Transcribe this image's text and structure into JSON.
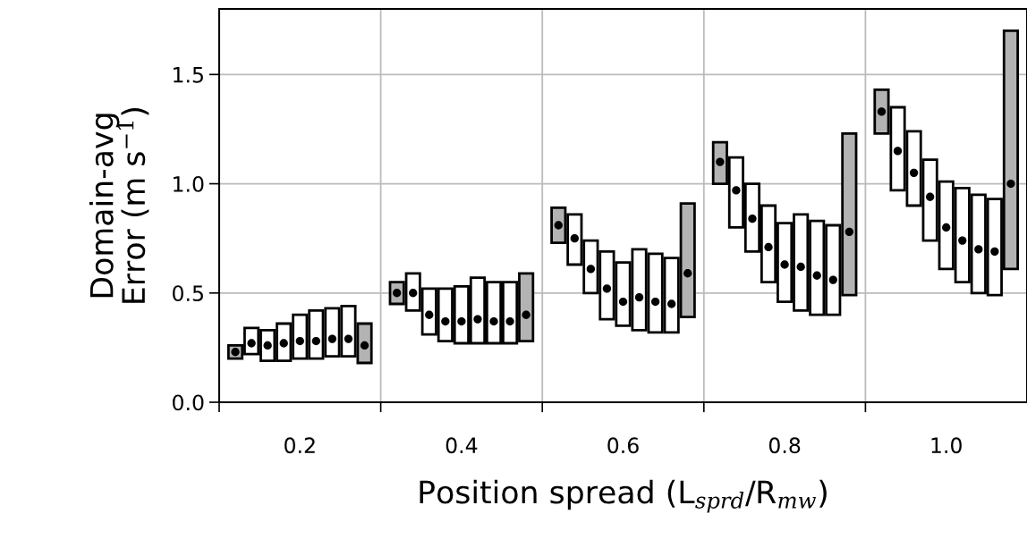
{
  "chart_data": {
    "type": "bar",
    "xlabel": "Position spread (L$_{sprd}$/R$_{mw}$)",
    "ylabel": "Domain-avg\nError (m s$^{−1}$)",
    "categories": [
      "0.2",
      "0.4",
      "0.6",
      "0.8",
      "1.0"
    ],
    "ylim": [
      0,
      1.8
    ],
    "yticks": [
      {
        "value": 0,
        "label": "0.0"
      },
      {
        "value": 0.5,
        "label": "0.5"
      },
      {
        "value": 1,
        "label": "1.0"
      },
      {
        "value": 1.5,
        "label": "1.5"
      }
    ],
    "grid": true,
    "series": [
      {
        "color": "#b3b3b3",
        "base": [
          0.2,
          0.45,
          0.73,
          1.0,
          1.23
        ],
        "values": [
          0.06,
          0.1,
          0.16,
          0.19,
          0.2
        ]
      },
      {
        "color": "#ffffff",
        "base": [
          0.22,
          0.42,
          0.63,
          0.8,
          0.97
        ],
        "values": [
          0.12,
          0.17,
          0.23,
          0.32,
          0.38
        ]
      },
      {
        "color": "#ffffff",
        "base": [
          0.19,
          0.31,
          0.5,
          0.69,
          0.9
        ],
        "values": [
          0.14,
          0.21,
          0.24,
          0.31,
          0.34
        ]
      },
      {
        "color": "#ffffff",
        "base": [
          0.19,
          0.28,
          0.38,
          0.55,
          0.74
        ],
        "values": [
          0.17,
          0.24,
          0.31,
          0.35,
          0.37
        ]
      },
      {
        "color": "#ffffff",
        "base": [
          0.2,
          0.27,
          0.35,
          0.46,
          0.61
        ],
        "values": [
          0.2,
          0.26,
          0.29,
          0.36,
          0.4
        ]
      },
      {
        "color": "#ffffff",
        "base": [
          0.2,
          0.27,
          0.33,
          0.42,
          0.55
        ],
        "values": [
          0.22,
          0.3,
          0.37,
          0.44,
          0.43
        ]
      },
      {
        "color": "#ffffff",
        "base": [
          0.21,
          0.27,
          0.32,
          0.4,
          0.5
        ],
        "values": [
          0.22,
          0.28,
          0.36,
          0.43,
          0.45
        ]
      },
      {
        "color": "#ffffff",
        "base": [
          0.21,
          0.27,
          0.32,
          0.4,
          0.49
        ],
        "values": [
          0.23,
          0.28,
          0.34,
          0.41,
          0.44
        ]
      },
      {
        "color": "#b3b3b3",
        "base": [
          0.18,
          0.28,
          0.39,
          0.49,
          0.61
        ],
        "values": [
          0.18,
          0.31,
          0.52,
          0.74,
          1.09
        ]
      },
      {
        "type": "scatter",
        "color": "#000000",
        "x": [
          "0.2",
          "0.4",
          "0.6",
          "0.8",
          "1.0"
        ],
        "values": [
          0.23,
          0.5,
          0.81,
          1.1,
          1.33
        ]
      },
      {
        "type": "scatter",
        "color": "#000000",
        "x": [
          "0.2",
          "0.4",
          "0.6",
          "0.8",
          "1.0"
        ],
        "values": [
          0.27,
          0.5,
          0.75,
          0.97,
          1.15
        ]
      },
      {
        "type": "scatter",
        "color": "#000000",
        "x": [
          "0.2",
          "0.4",
          "0.6",
          "0.8",
          "1.0"
        ],
        "values": [
          0.26,
          0.4,
          0.61,
          0.84,
          1.05
        ]
      },
      {
        "type": "scatter",
        "color": "#000000",
        "x": [
          "0.2",
          "0.4",
          "0.6",
          "0.8",
          "1.0"
        ],
        "values": [
          0.27,
          0.37,
          0.52,
          0.71,
          0.94
        ]
      },
      {
        "type": "scatter",
        "color": "#000000",
        "x": [
          "0.2",
          "0.4",
          "0.6",
          "0.8",
          "1.0"
        ],
        "values": [
          0.28,
          0.37,
          0.46,
          0.63,
          0.8
        ]
      },
      {
        "type": "scatter",
        "color": "#000000",
        "x": [
          "0.2",
          "0.4",
          "0.6",
          "0.8",
          "1.0"
        ],
        "values": [
          0.28,
          0.38,
          0.48,
          0.62,
          0.74
        ]
      },
      {
        "type": "scatter",
        "color": "#000000",
        "x": [
          "0.2",
          "0.4",
          "0.6",
          "0.8",
          "1.0"
        ],
        "values": [
          0.29,
          0.37,
          0.46,
          0.58,
          0.7
        ]
      },
      {
        "type": "scatter",
        "color": "#000000",
        "x": [
          "0.2",
          "0.4",
          "0.6",
          "0.8",
          "1.0"
        ],
        "values": [
          0.29,
          0.37,
          0.45,
          0.56,
          0.69
        ]
      },
      {
        "type": "scatter",
        "color": "#000000",
        "x": [
          "0.2",
          "0.4",
          "0.6",
          "0.8",
          "1.0"
        ],
        "values": [
          0.26,
          0.4,
          0.59,
          0.78,
          1.0
        ]
      }
    ]
  }
}
